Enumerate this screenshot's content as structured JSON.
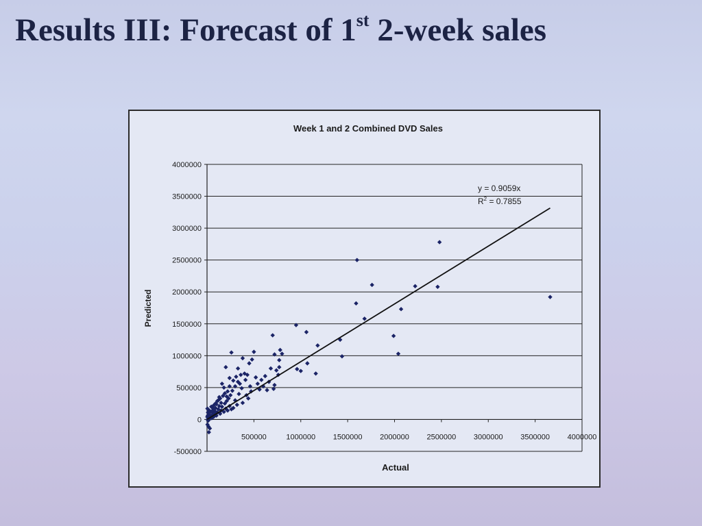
{
  "slide": {
    "title_main": "Results III: Forecast of 1",
    "title_sup": "st",
    "title_rest": " 2-week sales"
  },
  "chart_data": {
    "type": "scatter",
    "title": "Week 1 and 2 Combined DVD Sales",
    "xlabel": "Actual",
    "ylabel": "Predicted",
    "xlim": [
      0,
      4000000
    ],
    "ylim": [
      -500000,
      4000000
    ],
    "x_ticks": [
      500000,
      1000000,
      1500000,
      2000000,
      2500000,
      3000000,
      3500000,
      4000000
    ],
    "x_tick_labels": [
      "500000",
      "1000000",
      "1500000",
      "2000000",
      "2500000",
      "3000000",
      "3500000",
      "4000000"
    ],
    "y_ticks": [
      -500000,
      0,
      500000,
      1000000,
      1500000,
      2000000,
      2500000,
      3000000,
      3500000,
      4000000
    ],
    "y_tick_labels": [
      "-500000",
      "0",
      "500000",
      "1000000",
      "1500000",
      "2000000",
      "2500000",
      "3000000",
      "3500000",
      "4000000"
    ],
    "horizontal_grid": true,
    "marker_color": "#1b2466",
    "trendline": {
      "slope": 0.9059,
      "x_end": 3660000,
      "equation": "y = 0.9059x",
      "r2_prefix": "R",
      "r2_sup": "2",
      "r2_suffix": " = 0.7855"
    },
    "points": [
      [
        1600000,
        2500000
      ],
      [
        2480000,
        2780000
      ],
      [
        1760000,
        2110000
      ],
      [
        2220000,
        2090000
      ],
      [
        2460000,
        2080000
      ],
      [
        3660000,
        1920000
      ],
      [
        1590000,
        1820000
      ],
      [
        2070000,
        1730000
      ],
      [
        1680000,
        1580000
      ],
      [
        1990000,
        1310000
      ],
      [
        2040000,
        1030000
      ],
      [
        1420000,
        1250000
      ],
      [
        1440000,
        990000
      ],
      [
        1180000,
        1160000
      ],
      [
        1060000,
        1370000
      ],
      [
        1160000,
        720000
      ],
      [
        950000,
        1480000
      ],
      [
        1070000,
        880000
      ],
      [
        960000,
        790000
      ],
      [
        1000000,
        760000
      ],
      [
        700000,
        1320000
      ],
      [
        780000,
        1090000
      ],
      [
        720000,
        1020000
      ],
      [
        800000,
        1030000
      ],
      [
        770000,
        930000
      ],
      [
        770000,
        820000
      ],
      [
        740000,
        770000
      ],
      [
        680000,
        800000
      ],
      [
        660000,
        590000
      ],
      [
        720000,
        540000
      ],
      [
        710000,
        480000
      ],
      [
        760000,
        700000
      ],
      [
        620000,
        680000
      ],
      [
        600000,
        520000
      ],
      [
        640000,
        460000
      ],
      [
        580000,
        620000
      ],
      [
        500000,
        1060000
      ],
      [
        480000,
        940000
      ],
      [
        450000,
        880000
      ],
      [
        400000,
        720000
      ],
      [
        380000,
        960000
      ],
      [
        360000,
        700000
      ],
      [
        330000,
        590000
      ],
      [
        300000,
        520000
      ],
      [
        270000,
        450000
      ],
      [
        250000,
        380000
      ],
      [
        230000,
        330000
      ],
      [
        210000,
        290000
      ],
      [
        190000,
        250000
      ],
      [
        260000,
        1050000
      ],
      [
        200000,
        820000
      ],
      [
        240000,
        650000
      ],
      [
        160000,
        560000
      ],
      [
        180000,
        500000
      ],
      [
        220000,
        440000
      ],
      [
        300000,
        300000
      ],
      [
        340000,
        400000
      ],
      [
        380000,
        260000
      ],
      [
        420000,
        380000
      ],
      [
        460000,
        520000
      ],
      [
        520000,
        660000
      ],
      [
        540000,
        560000
      ],
      [
        560000,
        470000
      ],
      [
        470000,
        440000
      ],
      [
        440000,
        330000
      ],
      [
        320000,
        230000
      ],
      [
        280000,
        180000
      ],
      [
        260000,
        160000
      ],
      [
        240000,
        210000
      ],
      [
        220000,
        140000
      ],
      [
        200000,
        170000
      ],
      [
        180000,
        120000
      ],
      [
        160000,
        200000
      ],
      [
        150000,
        140000
      ],
      [
        140000,
        90000
      ],
      [
        130000,
        210000
      ],
      [
        120000,
        160000
      ],
      [
        110000,
        110000
      ],
      [
        100000,
        60000
      ],
      [
        90000,
        180000
      ],
      [
        85000,
        130000
      ],
      [
        80000,
        90000
      ],
      [
        70000,
        40000
      ],
      [
        65000,
        150000
      ],
      [
        60000,
        110000
      ],
      [
        55000,
        70000
      ],
      [
        50000,
        20000
      ],
      [
        45000,
        200000
      ],
      [
        40000,
        120000
      ],
      [
        35000,
        60000
      ],
      [
        30000,
        10000
      ],
      [
        25000,
        140000
      ],
      [
        20000,
        80000
      ],
      [
        15000,
        30000
      ],
      [
        12000,
        -20000
      ],
      [
        10000,
        110000
      ],
      [
        8000,
        60000
      ],
      [
        6000,
        0
      ],
      [
        5000,
        -80000
      ],
      [
        4000,
        170000
      ],
      [
        3000,
        40000
      ],
      [
        20000,
        -200000
      ],
      [
        30000,
        -140000
      ],
      [
        15000,
        -110000
      ],
      [
        120000,
        300000
      ],
      [
        140000,
        330000
      ],
      [
        170000,
        370000
      ],
      [
        190000,
        410000
      ],
      [
        210000,
        360000
      ],
      [
        150000,
        260000
      ],
      [
        100000,
        240000
      ],
      [
        110000,
        290000
      ],
      [
        70000,
        220000
      ],
      [
        60000,
        180000
      ],
      [
        90000,
        250000
      ],
      [
        130000,
        350000
      ],
      [
        240000,
        520000
      ],
      [
        280000,
        610000
      ],
      [
        310000,
        670000
      ],
      [
        350000,
        560000
      ],
      [
        370000,
        490000
      ],
      [
        410000,
        620000
      ],
      [
        430000,
        700000
      ],
      [
        330000,
        800000
      ]
    ]
  }
}
